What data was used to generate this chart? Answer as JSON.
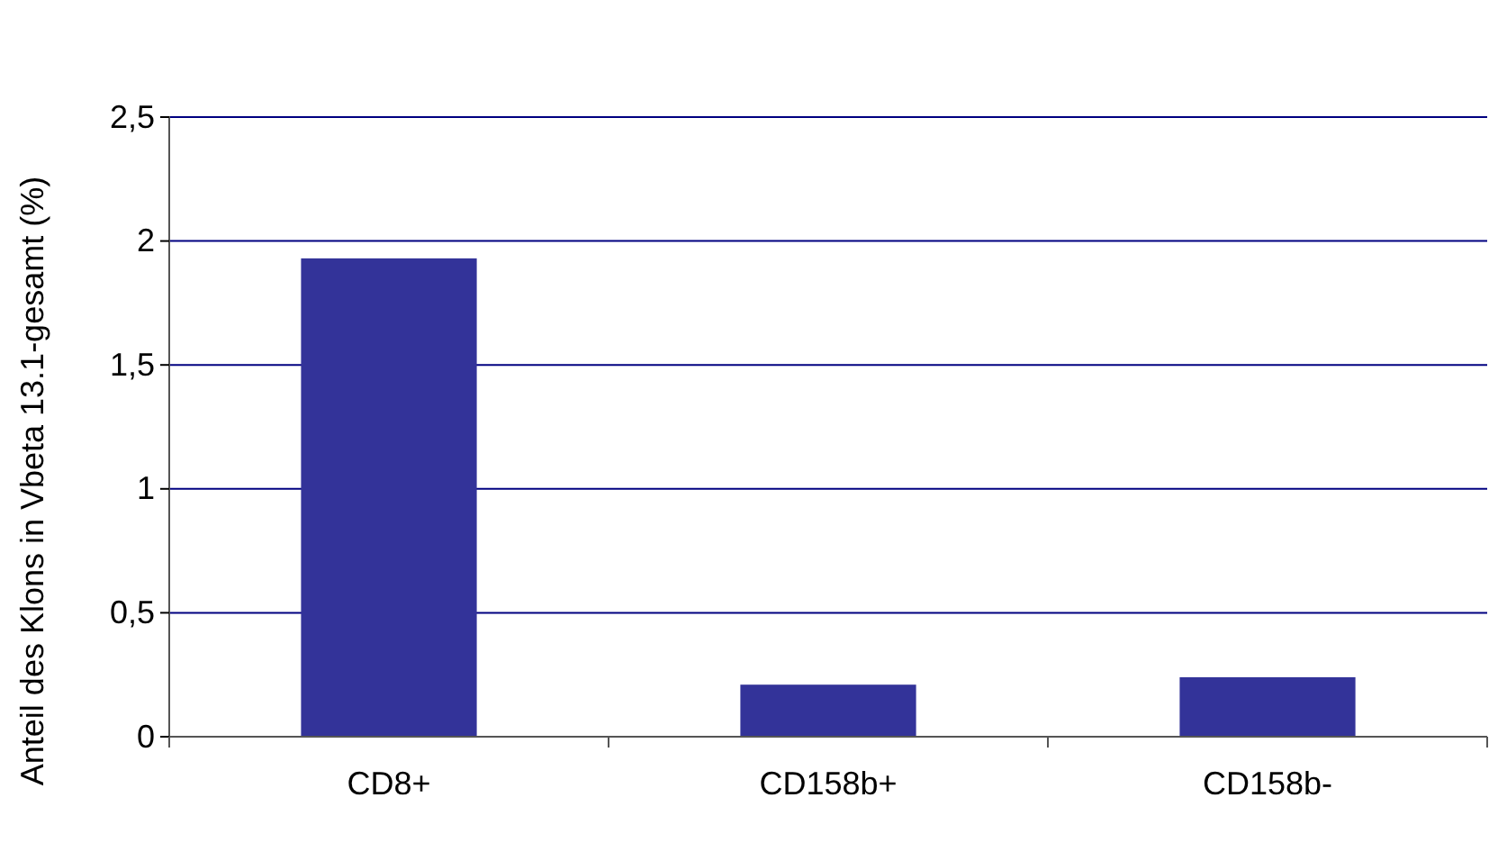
{
  "chart_data": {
    "type": "bar",
    "ylabel": "Anteil des Klons in Vbeta 13.1-gesamt (%)",
    "categories": [
      "CD8+",
      "CD158b+",
      "CD158b-"
    ],
    "values": [
      1.93,
      0.21,
      0.24
    ],
    "color": "#333399",
    "ylim": [
      0,
      2.5
    ],
    "yticks": [
      0,
      {
        "value": 0.5,
        "label": "0,5"
      },
      1,
      {
        "value": 1.5,
        "label": "1,5"
      },
      2,
      {
        "value": 2.5,
        "label": "2,5"
      }
    ],
    "grid": "y"
  }
}
